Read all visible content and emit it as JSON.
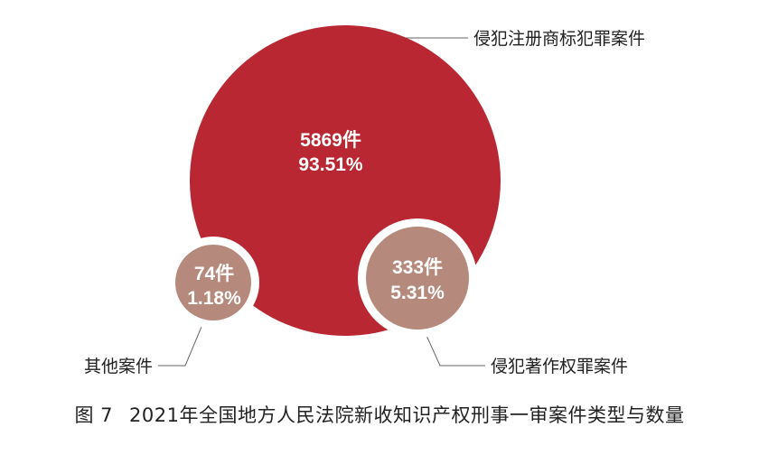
{
  "chart_data": {
    "type": "bubble",
    "series": [
      {
        "name": "侵犯注册商标犯罪案件",
        "count": 5869,
        "unit": "件",
        "percent": "93.51%",
        "color": "#b82732"
      },
      {
        "name": "侵犯著作权罪案件",
        "count": 333,
        "unit": "件",
        "percent": "5.31%",
        "color": "#b5897b"
      },
      {
        "name": "其他案件",
        "count": 74,
        "unit": "件",
        "percent": "1.18%",
        "color": "#b5897b"
      }
    ],
    "value_labels": [
      "5869件",
      "333件",
      "74件"
    ],
    "percent_labels": [
      "93.51%",
      "5.31%",
      "1.18%"
    ]
  },
  "caption": {
    "figure_number": "图 7",
    "title": "2021年全国地方人民法院新收知识产权刑事一审案件类型与数量"
  }
}
